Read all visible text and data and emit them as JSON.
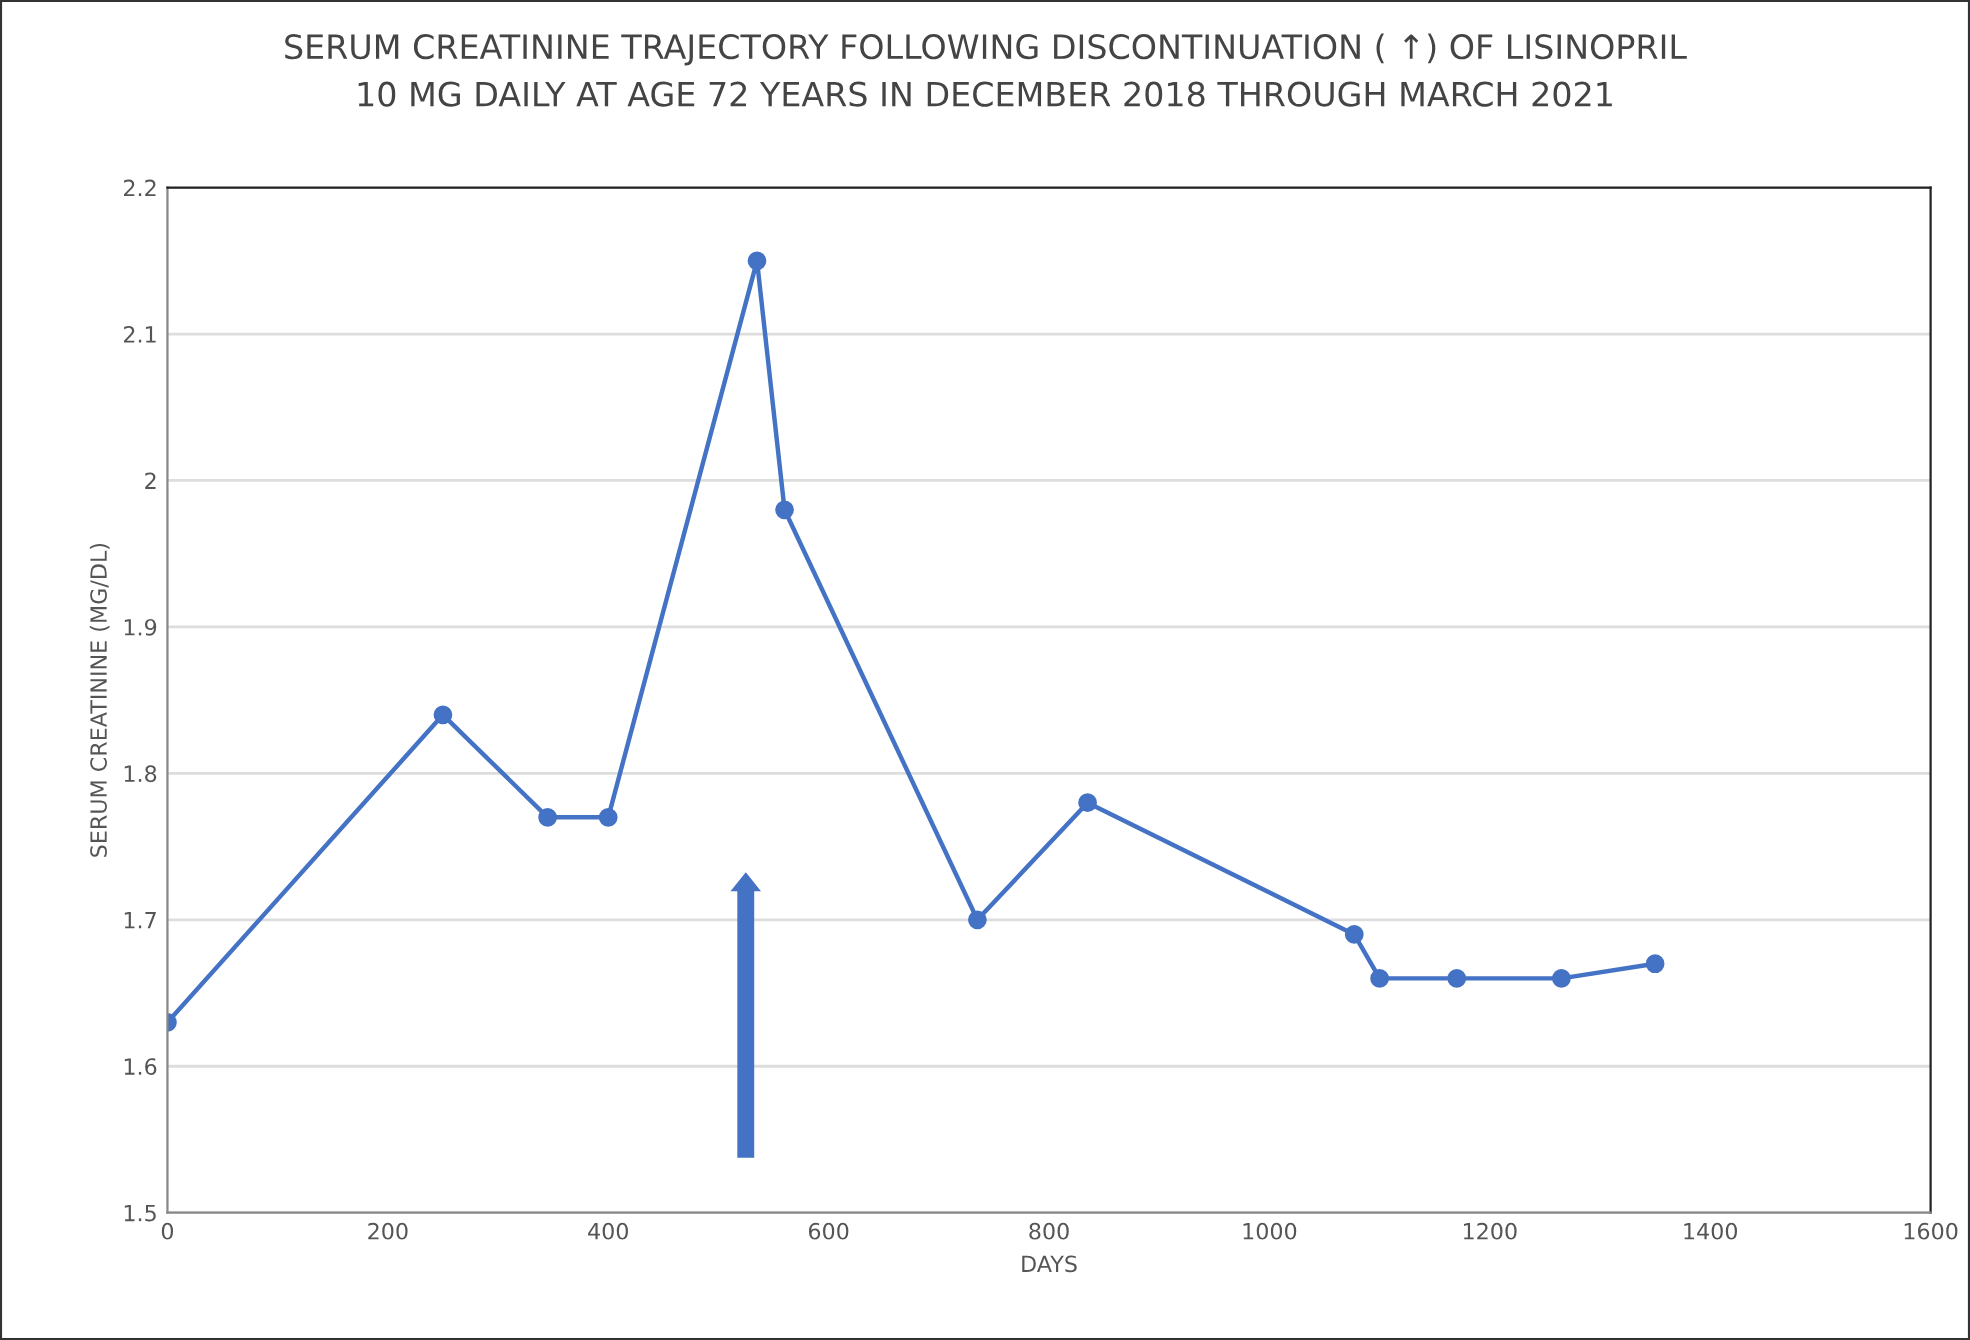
{
  "chart_data": {
    "type": "line",
    "title": "SERUM CREATININE TRAJECTORY FOLLOWING DISCONTINUATION ( ↑) OF LISINOPRIL\n10 MG DAILY AT AGE 72 YEARS IN DECEMBER 2018 THROUGH MARCH 2021",
    "xlabel": "DAYS",
    "ylabel": "SERUM CREATININE (MG/DL)",
    "x": [
      0,
      250,
      345,
      400,
      535,
      560,
      735,
      835,
      1077,
      1100,
      1170,
      1265,
      1350
    ],
    "series": [
      {
        "color": "#4472c4",
        "values": [
          1.63,
          1.84,
          1.77,
          1.77,
          2.15,
          1.98,
          1.7,
          1.78,
          1.69,
          1.66,
          1.66,
          1.66,
          1.67
        ]
      }
    ],
    "xlim": [
      0,
      1600
    ],
    "xticks": [
      0,
      200,
      400,
      600,
      800,
      1000,
      1200,
      1400,
      1600
    ],
    "ylim": [
      1.5,
      2.2
    ],
    "yticks": [
      {
        "value": 1.5,
        "label": "1.5"
      },
      {
        "value": 1.6,
        "label": "1.6"
      },
      {
        "value": 1.7,
        "label": "1.7"
      },
      {
        "value": 1.8,
        "label": "1.8"
      },
      {
        "value": 1.9,
        "label": "1.9"
      },
      {
        "value": 2.0,
        "label": "2"
      },
      {
        "value": 2.1,
        "label": "2.1"
      },
      {
        "value": 2.2,
        "label": "2.2"
      }
    ],
    "grid": "y",
    "marker": "circle",
    "line_style": "solid",
    "legend": false
  }
}
